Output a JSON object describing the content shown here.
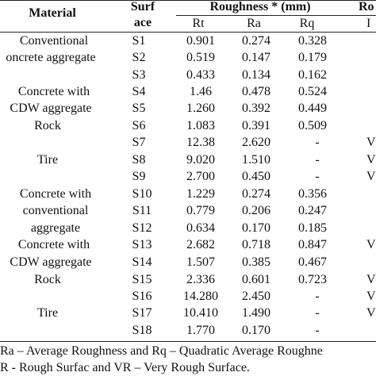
{
  "table": {
    "header": {
      "material": "Material",
      "surface_top": "Surf",
      "surface_bottom": "ace",
      "roughness_group": "Roughness * (mm)",
      "rt": "Rt",
      "ra": "Ra",
      "rq": "Rq",
      "classification_group": "Ro",
      "classification_sub": "I"
    },
    "materials": [
      "Conventional",
      "oncrete aggregate",
      "Concrete with",
      "CDW aggregate",
      "Rock",
      "Tire",
      "Concrete with",
      "conventional",
      "aggregate",
      "Concrete with",
      "CDW aggregate",
      "Rock",
      "Tire"
    ],
    "rows": [
      {
        "surface": "S1",
        "rt": "0.901",
        "ra": "0.274",
        "rq": "0.328",
        "cls": ""
      },
      {
        "surface": "S2",
        "rt": "0.519",
        "ra": "0.147",
        "rq": "0.179",
        "cls": ""
      },
      {
        "surface": "S3",
        "rt": "0.433",
        "ra": "0.134",
        "rq": "0.162",
        "cls": ""
      },
      {
        "surface": "S4",
        "rt": "1.46",
        "ra": "0.478",
        "rq": "0.524",
        "cls": ""
      },
      {
        "surface": "S5",
        "rt": "1.260",
        "ra": "0.392",
        "rq": "0.449",
        "cls": ""
      },
      {
        "surface": "S6",
        "rt": "1.083",
        "ra": "0.391",
        "rq": "0.509",
        "cls": ""
      },
      {
        "surface": "S7",
        "rt": "12.38",
        "ra": "2.620",
        "rq": "-",
        "cls": "V"
      },
      {
        "surface": "S8",
        "rt": "9.020",
        "ra": "1.510",
        "rq": "-",
        "cls": "V"
      },
      {
        "surface": "S9",
        "rt": "2.700",
        "ra": "0.450",
        "rq": "-",
        "cls": "V"
      },
      {
        "surface": "S10",
        "rt": "1.229",
        "ra": "0.274",
        "rq": "0.356",
        "cls": ""
      },
      {
        "surface": "S11",
        "rt": "0.779",
        "ra": "0.206",
        "rq": "0.247",
        "cls": ""
      },
      {
        "surface": "S12",
        "rt": "0.634",
        "ra": "0.170",
        "rq": "0.185",
        "cls": ""
      },
      {
        "surface": "S13",
        "rt": "2.682",
        "ra": "0.718",
        "rq": "0.847",
        "cls": "V"
      },
      {
        "surface": "S14",
        "rt": "1.507",
        "ra": "0.385",
        "rq": "0.467",
        "cls": ""
      },
      {
        "surface": "S15",
        "rt": "2.336",
        "ra": "0.601",
        "rq": "0.723",
        "cls": "V"
      },
      {
        "surface": "S16",
        "rt": "14.280",
        "ra": "2.450",
        "rq": "-",
        "cls": "V"
      },
      {
        "surface": "S17",
        "rt": "10.410",
        "ra": "1.490",
        "rq": "-",
        "cls": "V"
      },
      {
        "surface": "S18",
        "rt": "1.770",
        "ra": "0.170",
        "rq": "-",
        "cls": ""
      }
    ],
    "footnotes": [
      "Ra – Average Roughness and Rq – Quadratic Average Roughne",
      "R -  Rough Surfac and VR – Very Rough Surface."
    ]
  }
}
